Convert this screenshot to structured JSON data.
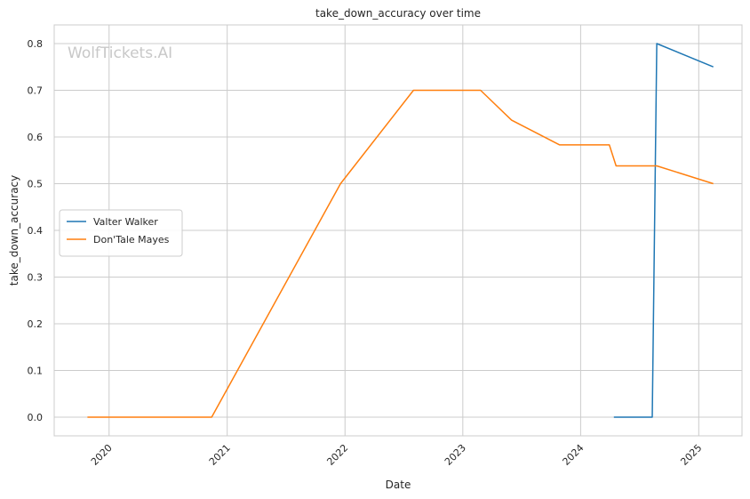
{
  "chart_data": {
    "type": "line",
    "title": "take_down_accuracy over time",
    "xlabel": "Date",
    "ylabel": "take_down_accuracy",
    "watermark": "WolfTickets.AI",
    "x_ticks": [
      "2020",
      "2021",
      "2022",
      "2023",
      "2024",
      "2025"
    ],
    "y_ticks": [
      "0.0",
      "0.1",
      "0.2",
      "0.3",
      "0.4",
      "0.5",
      "0.6",
      "0.7",
      "0.8"
    ],
    "xlim": [
      "2019-07-15",
      "2025-05-15"
    ],
    "ylim": [
      -0.04,
      0.84
    ],
    "grid": true,
    "legend_position": "center-left",
    "series": [
      {
        "name": "Valter Walker",
        "color": "#1f77b4",
        "points": [
          {
            "x": "2024-04-13",
            "y": 0.0
          },
          {
            "x": "2024-08-10",
            "y": 0.0
          },
          {
            "x": "2024-08-24",
            "y": 0.8
          },
          {
            "x": "2025-02-15",
            "y": 0.75
          }
        ]
      },
      {
        "name": "Don'Tale Mayes",
        "color": "#ff7f0e",
        "points": [
          {
            "x": "2019-10-26",
            "y": 0.0
          },
          {
            "x": "2020-11-14",
            "y": 0.0
          },
          {
            "x": "2021-12-18",
            "y": 0.5
          },
          {
            "x": "2022-08-01",
            "y": 0.7
          },
          {
            "x": "2023-02-25",
            "y": 0.7
          },
          {
            "x": "2023-06-01",
            "y": 0.636
          },
          {
            "x": "2023-10-28",
            "y": 0.583
          },
          {
            "x": "2024-03-30",
            "y": 0.583
          },
          {
            "x": "2024-04-20",
            "y": 0.538
          },
          {
            "x": "2024-08-24",
            "y": 0.538
          },
          {
            "x": "2025-02-15",
            "y": 0.5
          }
        ]
      }
    ]
  }
}
